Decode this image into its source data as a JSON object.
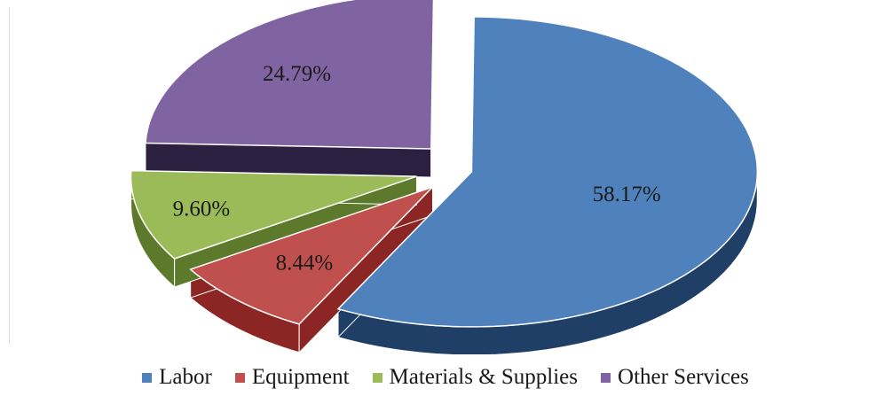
{
  "chart_data": {
    "type": "pie",
    "style": "3d-exploded",
    "slices": [
      {
        "label": "Labor",
        "value": 58.17,
        "display": "58.17%",
        "color": "#4f81bd",
        "side_color": "#1f3f67"
      },
      {
        "label": "Equipment",
        "value": 8.44,
        "display": "8.44%",
        "color": "#c0504d",
        "side_color": "#8b2624"
      },
      {
        "label": "Materials & Supplies",
        "value": 9.6,
        "display": "9.60%",
        "color": "#9bbb59",
        "side_color": "#5d7a2c"
      },
      {
        "label": "Other Services",
        "value": 24.79,
        "display": "24.79%",
        "color": "#8064a2",
        "side_color": "#2b2040"
      }
    ],
    "legend_position": "bottom"
  }
}
